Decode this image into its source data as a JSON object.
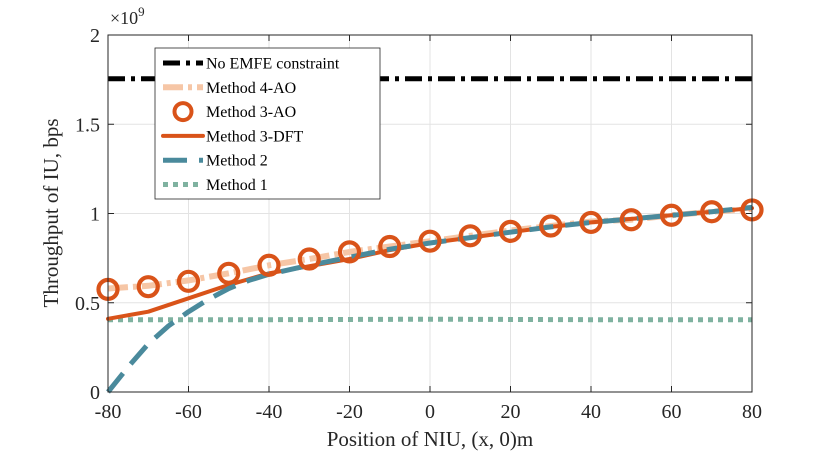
{
  "chart_data": {
    "type": "line",
    "xlabel": "Position of NIU, (x, 0)m",
    "ylabel": "Throughput of IU, bps",
    "y_multiplier_base": "×10",
    "y_multiplier_exp": "9",
    "xlim": [
      -80,
      80
    ],
    "ylim": [
      0,
      2
    ],
    "grid": true,
    "legend_position": "top-left",
    "x_ticks": [
      -80,
      -60,
      -40,
      -20,
      0,
      20,
      40,
      60,
      80
    ],
    "x_tick_labels": [
      "-80",
      "-60",
      "-40",
      "-20",
      "0",
      "20",
      "40",
      "60",
      "80"
    ],
    "y_ticks": [
      0,
      0.5,
      1,
      1.5,
      2
    ],
    "y_tick_labels": [
      "0",
      "0.5",
      "1",
      "1.5",
      "2"
    ],
    "series": [
      {
        "name": "No EMFE constraint",
        "style": "dashdot",
        "color": "#000000",
        "x": [
          -80,
          80
        ],
        "values": [
          1.755,
          1.755
        ]
      },
      {
        "name": "Method 4-AO",
        "style": "dashdot",
        "color": "#f6c6a6",
        "x": [
          -80,
          -70,
          -60,
          -50,
          -40,
          -30,
          -20,
          -10,
          0,
          10,
          20,
          30,
          40,
          50,
          60,
          70,
          80
        ],
        "values": [
          0.58,
          0.595,
          0.625,
          0.665,
          0.71,
          0.745,
          0.785,
          0.815,
          0.845,
          0.875,
          0.905,
          0.93,
          0.955,
          0.965,
          0.99,
          1.01,
          1.025
        ]
      },
      {
        "name": "Method 3-AO",
        "style": "circles",
        "color": "#d95319",
        "x": [
          -80,
          -70,
          -60,
          -50,
          -40,
          -30,
          -20,
          -10,
          0,
          10,
          20,
          30,
          40,
          50,
          60,
          70,
          80
        ],
        "values": [
          0.575,
          0.59,
          0.62,
          0.665,
          0.71,
          0.745,
          0.785,
          0.815,
          0.845,
          0.875,
          0.9,
          0.93,
          0.95,
          0.965,
          0.99,
          1.01,
          1.02
        ]
      },
      {
        "name": "Method 3-DFT",
        "style": "solid",
        "color": "#d95319",
        "x": [
          -80,
          -70,
          -60,
          -50,
          -40,
          -30,
          -20,
          -10,
          0,
          10,
          20,
          30,
          40,
          50,
          60,
          70,
          80
        ],
        "values": [
          0.41,
          0.45,
          0.525,
          0.6,
          0.665,
          0.705,
          0.745,
          0.795,
          0.835,
          0.865,
          0.895,
          0.925,
          0.95,
          0.97,
          0.99,
          1.01,
          1.03
        ]
      },
      {
        "name": "Method 2",
        "style": "dashed",
        "color": "#4a8a9c",
        "x": [
          -80,
          -75,
          -70,
          -65,
          -60,
          -55,
          -50,
          -45,
          -40,
          -30,
          -20,
          -10,
          0,
          10,
          20,
          30,
          40,
          50,
          60,
          70,
          80
        ],
        "values": [
          0.0,
          0.14,
          0.27,
          0.37,
          0.45,
          0.52,
          0.58,
          0.625,
          0.66,
          0.71,
          0.755,
          0.8,
          0.835,
          0.865,
          0.895,
          0.925,
          0.95,
          0.97,
          0.99,
          1.01,
          1.035
        ]
      },
      {
        "name": "Method 1",
        "style": "dotted",
        "color": "#7fb2a0",
        "x": [
          -80,
          -40,
          0,
          40,
          80
        ],
        "values": [
          0.405,
          0.405,
          0.408,
          0.405,
          0.405
        ]
      }
    ]
  }
}
